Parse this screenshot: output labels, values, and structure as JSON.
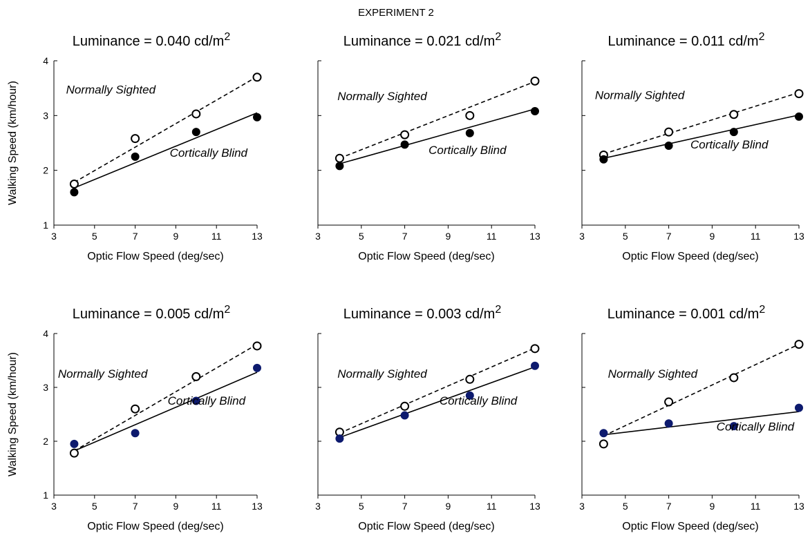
{
  "figure": {
    "title": "EXPERIMENT 2",
    "colors": {
      "axis": "#000000",
      "fill_sighted": "#ffffff",
      "fill_blind_top": "#000000",
      "fill_blind_bottom": "#0d1a6e"
    }
  },
  "chart_data": [
    {
      "type": "scatter",
      "title_prefix": "Luminance = 0.040 cd/m",
      "title_sup": "2",
      "xlabel": "Optic Flow Speed (deg/sec)",
      "ylabel": "Walking Speed (km/hour)",
      "xlim": [
        3,
        13
      ],
      "ylim": [
        1,
        4
      ],
      "xticks": [
        3,
        5,
        7,
        9,
        11,
        13
      ],
      "yticks": [
        1,
        2,
        3,
        4
      ],
      "show_ytick_labels": true,
      "series": [
        {
          "name": "Normally Sighted",
          "marker": "open-circle",
          "line": "dashed",
          "x": [
            4,
            7,
            10,
            13
          ],
          "y": [
            1.75,
            2.58,
            3.03,
            3.7
          ],
          "fit": [
            1.78,
            3.71
          ]
        },
        {
          "name": "Cortically Blind",
          "marker": "filled-circle",
          "line": "solid",
          "color": "#000000",
          "x": [
            4,
            7,
            10,
            13
          ],
          "y": [
            1.6,
            2.25,
            2.7,
            2.97
          ],
          "fit": [
            1.68,
            3.05
          ]
        }
      ],
      "annotations": [
        {
          "text": "Normally Sighted",
          "x": 3.6,
          "y": 3.4
        },
        {
          "text": "Cortically Blind",
          "x": 8.7,
          "y": 2.25
        }
      ]
    },
    {
      "type": "scatter",
      "title_prefix": "Luminance = 0.021 cd/m",
      "title_sup": "2",
      "xlabel": "Optic Flow Speed (deg/sec)",
      "ylabel": "",
      "xlim": [
        3,
        13
      ],
      "ylim": [
        1,
        4
      ],
      "xticks": [
        3,
        5,
        7,
        9,
        11,
        13
      ],
      "yticks": [
        1,
        2,
        3,
        4
      ],
      "show_ytick_labels": false,
      "series": [
        {
          "name": "Normally Sighted",
          "marker": "open-circle",
          "line": "dashed",
          "x": [
            4,
            7,
            10,
            13
          ],
          "y": [
            2.22,
            2.65,
            3.0,
            3.63
          ],
          "fit": [
            2.22,
            3.62
          ]
        },
        {
          "name": "Cortically Blind",
          "marker": "filled-circle",
          "line": "solid",
          "color": "#000000",
          "x": [
            4,
            7,
            10,
            13
          ],
          "y": [
            2.08,
            2.47,
            2.68,
            3.08
          ],
          "fit": [
            2.12,
            3.12
          ]
        }
      ],
      "annotations": [
        {
          "text": "Normally Sighted",
          "x": 3.9,
          "y": 3.28
        },
        {
          "text": "Cortically Blind",
          "x": 8.1,
          "y": 2.3
        }
      ]
    },
    {
      "type": "scatter",
      "title_prefix": "Luminance = 0.011 cd/m",
      "title_sup": "2",
      "xlabel": "Optic Flow Speed (deg/sec)",
      "ylabel": "",
      "xlim": [
        3,
        13
      ],
      "ylim": [
        1,
        4
      ],
      "xticks": [
        3,
        5,
        7,
        9,
        11,
        13
      ],
      "yticks": [
        1,
        2,
        3,
        4
      ],
      "show_ytick_labels": false,
      "series": [
        {
          "name": "Normally Sighted",
          "marker": "open-circle",
          "line": "dashed",
          "x": [
            4,
            7,
            10,
            13
          ],
          "y": [
            2.28,
            2.7,
            3.02,
            3.4
          ],
          "fit": [
            2.3,
            3.42
          ]
        },
        {
          "name": "Cortically Blind",
          "marker": "filled-circle",
          "line": "solid",
          "color": "#000000",
          "x": [
            4,
            7,
            10,
            13
          ],
          "y": [
            2.2,
            2.45,
            2.7,
            2.98
          ],
          "fit": [
            2.22,
            3.01
          ]
        }
      ],
      "annotations": [
        {
          "text": "Normally Sighted",
          "x": 3.6,
          "y": 3.3
        },
        {
          "text": "Cortically Blind",
          "x": 8.0,
          "y": 2.4
        }
      ]
    },
    {
      "type": "scatter",
      "title_prefix": "Luminance = 0.005 cd/m",
      "title_sup": "2",
      "xlabel": "Optic Flow Speed (deg/sec)",
      "ylabel": "Walking Speed (km/hour)",
      "xlim": [
        3,
        13
      ],
      "ylim": [
        1,
        4
      ],
      "xticks": [
        3,
        5,
        7,
        9,
        11,
        13
      ],
      "yticks": [
        1,
        2,
        3,
        4
      ],
      "show_ytick_labels": true,
      "series": [
        {
          "name": "Normally Sighted",
          "marker": "open-circle",
          "line": "dashed",
          "x": [
            4,
            7,
            10,
            13
          ],
          "y": [
            1.78,
            2.6,
            3.2,
            3.77
          ],
          "fit": [
            1.82,
            3.8
          ]
        },
        {
          "name": "Cortically Blind",
          "marker": "filled-circle",
          "line": "solid",
          "color": "#0d1a6e",
          "x": [
            4,
            7,
            10,
            13
          ],
          "y": [
            1.95,
            2.15,
            2.75,
            3.36
          ],
          "fit": [
            1.82,
            3.28
          ]
        }
      ],
      "annotations": [
        {
          "text": "Normally Sighted",
          "x": 3.2,
          "y": 3.18
        },
        {
          "text": "Cortically Blind",
          "x": 8.6,
          "y": 2.68
        }
      ]
    },
    {
      "type": "scatter",
      "title_prefix": "Luminance = 0.003 cd/m",
      "title_sup": "2",
      "xlabel": "Optic Flow Speed (deg/sec)",
      "ylabel": "",
      "xlim": [
        3,
        13
      ],
      "ylim": [
        1,
        4
      ],
      "xticks": [
        3,
        5,
        7,
        9,
        11,
        13
      ],
      "yticks": [
        1,
        2,
        3,
        4
      ],
      "show_ytick_labels": false,
      "series": [
        {
          "name": "Normally Sighted",
          "marker": "open-circle",
          "line": "dashed",
          "x": [
            4,
            7,
            10,
            13
          ],
          "y": [
            2.17,
            2.65,
            3.15,
            3.72
          ],
          "fit": [
            2.15,
            3.73
          ]
        },
        {
          "name": "Cortically Blind",
          "marker": "filled-circle",
          "line": "solid",
          "color": "#0d1a6e",
          "x": [
            4,
            7,
            10,
            13
          ],
          "y": [
            2.05,
            2.48,
            2.85,
            3.4
          ],
          "fit": [
            2.07,
            3.38
          ]
        }
      ],
      "annotations": [
        {
          "text": "Normally Sighted",
          "x": 3.9,
          "y": 3.18
        },
        {
          "text": "Cortically Blind",
          "x": 8.6,
          "y": 2.68
        }
      ]
    },
    {
      "type": "scatter",
      "title_prefix": "Luminance = 0.001 cd/m",
      "title_sup": "2",
      "xlabel": "Optic Flow Speed (deg/sec)",
      "ylabel": "",
      "xlim": [
        3,
        13
      ],
      "ylim": [
        1,
        4
      ],
      "xticks": [
        3,
        5,
        7,
        9,
        11,
        13
      ],
      "yticks": [
        1,
        2,
        3,
        4
      ],
      "show_ytick_labels": false,
      "series": [
        {
          "name": "Normally Sighted",
          "marker": "open-circle",
          "line": "dashed",
          "x": [
            4,
            7,
            10,
            13
          ],
          "y": [
            1.95,
            2.73,
            3.18,
            3.8
          ],
          "fit": [
            2.1,
            3.8
          ]
        },
        {
          "name": "Cortically Blind",
          "marker": "filled-circle",
          "line": "solid",
          "color": "#0d1a6e",
          "x": [
            4,
            7,
            10,
            13
          ],
          "y": [
            2.15,
            2.33,
            2.28,
            2.62
          ],
          "fit": [
            2.12,
            2.55
          ]
        }
      ],
      "annotations": [
        {
          "text": "Normally Sighted",
          "x": 4.2,
          "y": 3.18
        },
        {
          "text": "Cortically Blind",
          "x": 9.2,
          "y": 2.2
        }
      ]
    }
  ]
}
